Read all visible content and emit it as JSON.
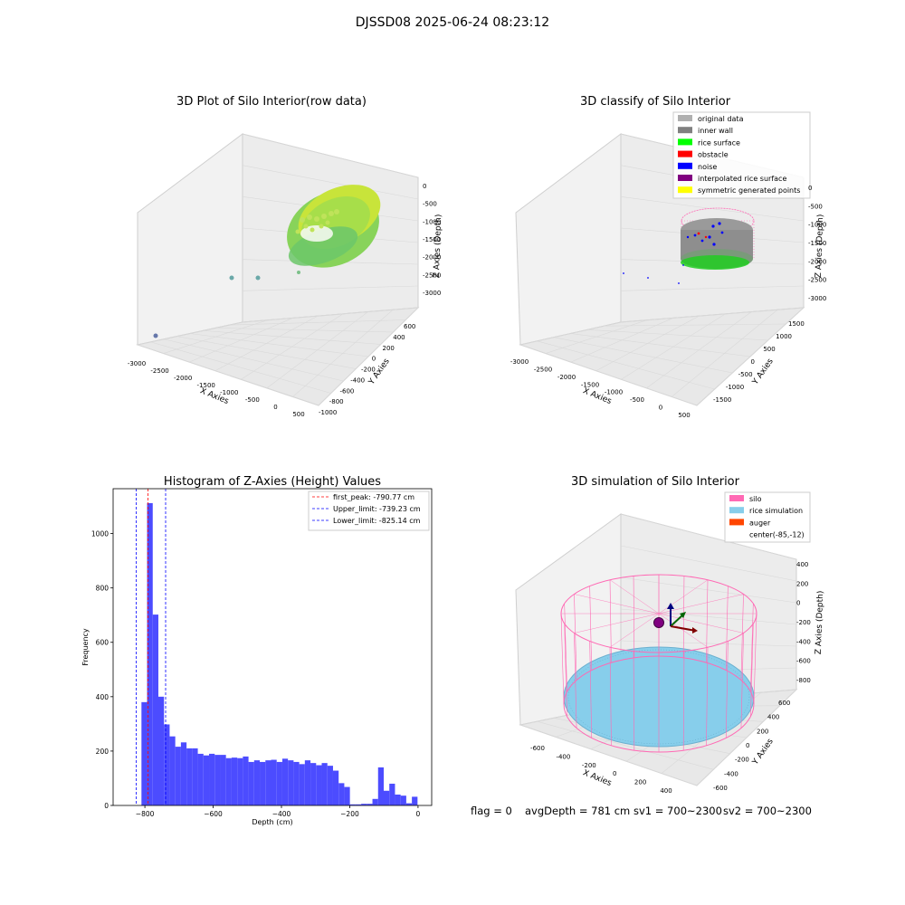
{
  "figure": {
    "suptitle": "DJSSD08 2025-06-24 08:23:12",
    "footer": {
      "flag": "flag = 0",
      "avg": "avgDepth = 781 cm",
      "sv1": "sv1 = 700~2300",
      "sv2": "sv2 = 700~2300"
    }
  },
  "colors": {
    "hist_bar": "#4c4cff",
    "peak_line": "#ff0000",
    "limit_line": "#0000ff",
    "silo": "#ff69b4",
    "rice": "#87ceeb",
    "auger": "#ff4500",
    "pane_gray": "#f2f2f2",
    "grid": "#d9d9d9",
    "point_green": "#66cc66",
    "point_yellow": "#ddee22"
  },
  "chart_data": [
    {
      "type": "scatter",
      "subtype": "3d",
      "title": "3D Plot of Silo Interior(row data)",
      "xlabel": "X Axies",
      "ylabel": "Y Axies",
      "zlabel": "Z Axies (Depth)",
      "xticks": [
        "-3000",
        "-2500",
        "-2000",
        "-1500",
        "-1000",
        "-500",
        "0",
        "500"
      ],
      "yticks": [
        "-1000",
        "-800",
        "-600",
        "-400",
        "-200",
        "0",
        "200",
        "400",
        "600"
      ],
      "zticks": [
        "0",
        "-500",
        "-1000",
        "-1500",
        "-2000",
        "-2500",
        "-3000"
      ],
      "xlim": [
        -3000,
        500
      ],
      "ylim": [
        -1000,
        600
      ],
      "zlim": [
        -3000,
        0
      ],
      "grid": true
    },
    {
      "type": "scatter",
      "subtype": "3d",
      "title": "3D classify of Silo Interior",
      "xlabel": "X Axies",
      "ylabel": "Y Axies",
      "zlabel": "Z Axies (Depth)",
      "xticks": [
        "-3000",
        "-2500",
        "-2000",
        "-1500",
        "-1000",
        "-500",
        "0",
        "500"
      ],
      "yticks": [
        "-1500",
        "-1000",
        "-500",
        "0",
        "500",
        "1000",
        "1500"
      ],
      "zticks": [
        "0",
        "-500",
        "-1000",
        "-1500",
        "-2000",
        "-2500",
        "-3000"
      ],
      "xlim": [
        -3000,
        500
      ],
      "ylim": [
        -1500,
        1500
      ],
      "zlim": [
        -3000,
        0
      ],
      "grid": true,
      "legend": {
        "position": "top-right",
        "items": [
          {
            "name": "original data",
            "color": "#b0b0b0"
          },
          {
            "name": "inner wall",
            "color": "#808080"
          },
          {
            "name": "rice surface",
            "color": "#00ff00"
          },
          {
            "name": "obstacle",
            "color": "#ff0000"
          },
          {
            "name": "noise",
            "color": "#0000ff"
          },
          {
            "name": "interpolated rice surface",
            "color": "#800080"
          },
          {
            "name": "symmetric generated points",
            "color": "#ffff00"
          }
        ]
      }
    },
    {
      "type": "bar",
      "subtype": "histogram",
      "title": "Histogram of Z-Axies (Height) Values",
      "xlabel": "Depth (cm)",
      "ylabel": "Frequency",
      "xlim": [
        -893,
        40
      ],
      "ylim": [
        0,
        1165
      ],
      "xticks": [
        -800,
        -600,
        -400,
        -200,
        0
      ],
      "yticks": [
        0,
        200,
        400,
        600,
        800,
        1000
      ],
      "bin_width": 16.5,
      "bins": [
        {
          "x0": -810,
          "value": 380
        },
        {
          "x0": -793.5,
          "value": 1112
        },
        {
          "x0": -777,
          "value": 702
        },
        {
          "x0": -760.5,
          "value": 400
        },
        {
          "x0": -744,
          "value": 298
        },
        {
          "x0": -727.5,
          "value": 254
        },
        {
          "x0": -711,
          "value": 216
        },
        {
          "x0": -694.5,
          "value": 232
        },
        {
          "x0": -678,
          "value": 210
        },
        {
          "x0": -661.5,
          "value": 210
        },
        {
          "x0": -645,
          "value": 190
        },
        {
          "x0": -628.5,
          "value": 184
        },
        {
          "x0": -612,
          "value": 190
        },
        {
          "x0": -595.5,
          "value": 186
        },
        {
          "x0": -579,
          "value": 186
        },
        {
          "x0": -562.5,
          "value": 174
        },
        {
          "x0": -546,
          "value": 176
        },
        {
          "x0": -529.5,
          "value": 174
        },
        {
          "x0": -513,
          "value": 180
        },
        {
          "x0": -496.5,
          "value": 160
        },
        {
          "x0": -480,
          "value": 166
        },
        {
          "x0": -463.5,
          "value": 160
        },
        {
          "x0": -447,
          "value": 166
        },
        {
          "x0": -430.5,
          "value": 168
        },
        {
          "x0": -414,
          "value": 160
        },
        {
          "x0": -397.5,
          "value": 172
        },
        {
          "x0": -381,
          "value": 166
        },
        {
          "x0": -364.5,
          "value": 160
        },
        {
          "x0": -348,
          "value": 152
        },
        {
          "x0": -331.5,
          "value": 166
        },
        {
          "x0": -315,
          "value": 156
        },
        {
          "x0": -298.5,
          "value": 148
        },
        {
          "x0": -282,
          "value": 156
        },
        {
          "x0": -265.5,
          "value": 146
        },
        {
          "x0": -249,
          "value": 128
        },
        {
          "x0": -232.5,
          "value": 82
        },
        {
          "x0": -216,
          "value": 68
        },
        {
          "x0": -199.5,
          "value": 4
        },
        {
          "x0": -183,
          "value": 4
        },
        {
          "x0": -166.5,
          "value": 6
        },
        {
          "x0": -150,
          "value": 6
        },
        {
          "x0": -133.5,
          "value": 24
        },
        {
          "x0": -117,
          "value": 140
        },
        {
          "x0": -100.5,
          "value": 54
        },
        {
          "x0": -84,
          "value": 80
        },
        {
          "x0": -67.5,
          "value": 40
        },
        {
          "x0": -51,
          "value": 36
        },
        {
          "x0": -34.5,
          "value": 8
        },
        {
          "x0": -18,
          "value": 32
        }
      ],
      "vlines": [
        {
          "name": "first_peak: -790.77 cm",
          "x": -790.77,
          "color": "#ff0000"
        },
        {
          "name": "Upper_limit: -739.23 cm",
          "x": -739.23,
          "color": "#0000ff"
        },
        {
          "name": "Lower_limit: -825.14 cm",
          "x": -825.14,
          "color": "#0000ff"
        }
      ],
      "legend_position": "top-right"
    },
    {
      "type": "scatter",
      "subtype": "3d",
      "title": "3D simulation of Silo Interior",
      "xlabel": "X Axies",
      "ylabel": "Y Axies",
      "zlabel": "Z Axies (Depth)",
      "xticks": [
        "-600",
        "-400",
        "-200",
        "0",
        "200",
        "400"
      ],
      "yticks": [
        "-600",
        "-400",
        "-200",
        "0",
        "200",
        "400",
        "600"
      ],
      "zticks": [
        "400",
        "200",
        "0",
        "-200",
        "-400",
        "-600",
        "-800"
      ],
      "grid": true,
      "legend": {
        "position": "top-right",
        "items": [
          {
            "name": "silo",
            "color": "#ff69b4"
          },
          {
            "name": "rice simulation",
            "color": "#87ceeb"
          },
          {
            "name": "auger",
            "color": "#ff4500"
          },
          {
            "name": "center(-85,-12)",
            "color": ""
          }
        ]
      }
    }
  ]
}
